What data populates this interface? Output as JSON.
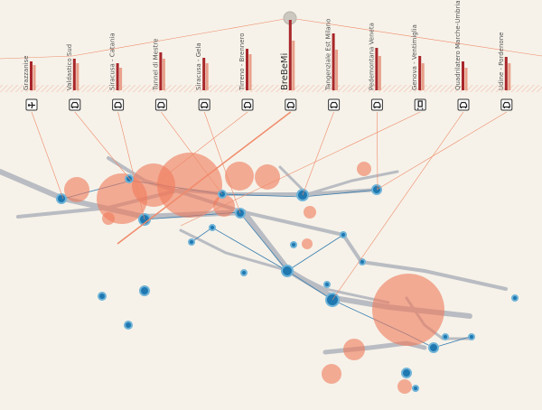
{
  "projects": [
    {
      "label": "Grazzanise",
      "icon": "plane",
      "bars": [
        32,
        28
      ]
    },
    {
      "label": "Valdastico Sud",
      "icon": "car",
      "bars": [
        35,
        30
      ]
    },
    {
      "label": "Siracusa - Catania",
      "icon": "car",
      "bars": [
        30,
        25
      ]
    },
    {
      "label": "Tunnel di Mestre",
      "icon": "car",
      "bars": [
        42,
        35
      ]
    },
    {
      "label": "Siracusa - Gela",
      "icon": "car",
      "bars": [
        36,
        30
      ]
    },
    {
      "label": "Tirreno - Brennero",
      "icon": "car",
      "bars": [
        46,
        40
      ]
    },
    {
      "label": "BreBeMi",
      "icon": "car",
      "bars": [
        78,
        55
      ]
    },
    {
      "label": "Tangenziale Est Milano",
      "icon": "car",
      "bars": [
        63,
        45
      ]
    },
    {
      "label": "Pedemontana Veneta",
      "icon": "car",
      "bars": [
        47,
        38
      ]
    },
    {
      "label": "Genova - Ventimiglia",
      "icon": "train",
      "bars": [
        38,
        30
      ]
    },
    {
      "label": "Quadrilatero Marche-Umbria",
      "icon": "car",
      "bars": [
        32,
        25
      ]
    },
    {
      "label": "Udine - Pordenone",
      "icon": "car",
      "bars": [
        37,
        30
      ]
    }
  ]
}
